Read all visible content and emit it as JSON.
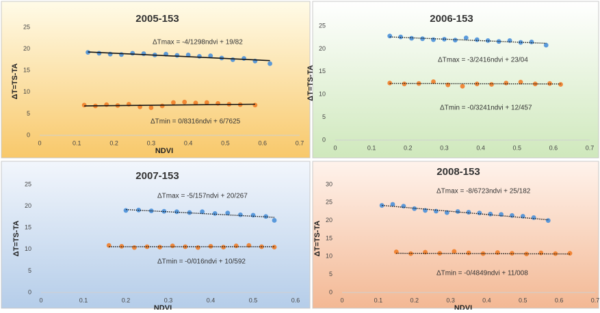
{
  "chart_data": [
    {
      "type": "scatter",
      "title": "2005-153",
      "x_label": "NDVI",
      "y_label": "ΔT=TS-TA",
      "xlim": [
        0,
        0.7
      ],
      "xticks": [
        0,
        0.1,
        0.2,
        0.3,
        0.4,
        0.5,
        0.6,
        0.7
      ],
      "ylim": [
        0,
        25
      ],
      "yticks": [
        0,
        5,
        10,
        15,
        20,
        25
      ],
      "trendline": "solid",
      "annotations": [
        "ΔTmax = -4/1298ndvi + 19/82",
        "ΔTmin = 0/8316ndvi + 6/7625"
      ],
      "series": [
        {
          "color": "#4a90d9",
          "x": [
            0.13,
            0.16,
            0.19,
            0.22,
            0.25,
            0.28,
            0.31,
            0.34,
            0.37,
            0.4,
            0.43,
            0.46,
            0.49,
            0.52,
            0.55,
            0.58,
            0.62
          ],
          "values": [
            19.2,
            19,
            18.8,
            18.7,
            19,
            18.9,
            18.6,
            18.8,
            18.5,
            18.6,
            18.3,
            18.4,
            17.9,
            17.5,
            17.8,
            17.2,
            16.6
          ],
          "trend": {
            "x": [
              0.13,
              0.62
            ],
            "y": [
              19.3,
              17.3
            ]
          }
        },
        {
          "color": "#f07d28",
          "x": [
            0.12,
            0.15,
            0.18,
            0.21,
            0.24,
            0.27,
            0.3,
            0.33,
            0.36,
            0.39,
            0.42,
            0.45,
            0.48,
            0.51,
            0.54,
            0.58
          ],
          "values": [
            7,
            6.8,
            7.1,
            6.9,
            7.2,
            6.6,
            6.4,
            6.8,
            7.6,
            7.7,
            7.5,
            7.6,
            7.4,
            7.2,
            7.1,
            7
          ],
          "trend": {
            "x": [
              0.12,
              0.58
            ],
            "y": [
              6.8,
              7.2
            ]
          }
        }
      ]
    },
    {
      "type": "scatter",
      "title": "2006-153",
      "y_label": "ΔT=TS-TA",
      "xlim": [
        0,
        0.7
      ],
      "xticks": [
        0,
        0.1,
        0.2,
        0.3,
        0.4,
        0.5,
        0.6,
        0.7
      ],
      "ylim": [
        0,
        25
      ],
      "yticks": [
        0,
        5,
        10,
        15,
        20,
        25
      ],
      "trendline": "dotted",
      "annotations": [
        "ΔTmax = -3/2416ndvi + 23/04",
        "ΔTmin = -0/3241ndvi + 12/457"
      ],
      "series": [
        {
          "color": "#4a90d9",
          "x": [
            0.15,
            0.18,
            0.21,
            0.24,
            0.27,
            0.3,
            0.33,
            0.36,
            0.39,
            0.42,
            0.45,
            0.48,
            0.51,
            0.54,
            0.58
          ],
          "values": [
            22.8,
            22.6,
            22.3,
            22.2,
            22,
            22.1,
            21.9,
            22.4,
            22,
            21.8,
            21.6,
            21.8,
            21.4,
            21.5,
            20.8
          ],
          "trend": {
            "x": [
              0.15,
              0.58
            ],
            "y": [
              22.6,
              21.2
            ]
          }
        },
        {
          "color": "#f07d28",
          "x": [
            0.15,
            0.19,
            0.23,
            0.27,
            0.31,
            0.35,
            0.39,
            0.43,
            0.47,
            0.51,
            0.55,
            0.59,
            0.62
          ],
          "values": [
            12.5,
            12.3,
            12.4,
            12.8,
            12.1,
            11.8,
            12.3,
            12.2,
            12.5,
            12.7,
            12.3,
            12.4,
            12.2
          ],
          "trend": {
            "x": [
              0.15,
              0.62
            ],
            "y": [
              12.4,
              12.3
            ]
          }
        }
      ]
    },
    {
      "type": "scatter",
      "title": "2007-153",
      "x_label": "NDVI",
      "y_label": "ΔT=TS-TA",
      "xlim": [
        0,
        0.6
      ],
      "xticks": [
        0,
        0.1,
        0.2,
        0.3,
        0.4,
        0.5,
        0.6
      ],
      "ylim": [
        0,
        25
      ],
      "yticks": [
        0,
        5,
        10,
        15,
        20,
        25
      ],
      "trendline": "dotted",
      "annotations": [
        "ΔTmax = -5/157ndvi + 20/267",
        "ΔTmin = -0/016ndvi + 10/592"
      ],
      "series": [
        {
          "color": "#4a90d9",
          "x": [
            0.2,
            0.23,
            0.26,
            0.29,
            0.32,
            0.35,
            0.38,
            0.41,
            0.44,
            0.47,
            0.5,
            0.53,
            0.55
          ],
          "values": [
            19,
            19.1,
            18.9,
            18.8,
            18.7,
            18.5,
            18.7,
            18.3,
            18.4,
            18,
            17.9,
            17.6,
            16.7
          ],
          "trend": {
            "x": [
              0.2,
              0.55
            ],
            "y": [
              19.2,
              17.4
            ]
          }
        },
        {
          "color": "#f07d28",
          "x": [
            0.16,
            0.19,
            0.22,
            0.25,
            0.28,
            0.31,
            0.34,
            0.37,
            0.4,
            0.43,
            0.46,
            0.49,
            0.52,
            0.55
          ],
          "values": [
            10.9,
            10.7,
            10.4,
            10.6,
            10.5,
            10.8,
            10.6,
            10.4,
            10.7,
            10.5,
            10.8,
            10.9,
            10.6,
            10.5
          ],
          "trend": {
            "x": [
              0.16,
              0.55
            ],
            "y": [
              10.6,
              10.6
            ]
          }
        }
      ]
    },
    {
      "type": "scatter",
      "title": "2008-153",
      "x_label": "NDVI",
      "y_label": "ΔT=TS-TA",
      "xlim": [
        0,
        0.7
      ],
      "xticks": [
        0,
        0.1,
        0.2,
        0.3,
        0.4,
        0.5,
        0.6,
        0.7
      ],
      "ylim": [
        0,
        30
      ],
      "yticks": [
        0,
        5,
        10,
        15,
        20,
        25,
        30
      ],
      "trendline": "dotted",
      "annotations": [
        "ΔTmax = -8/6723ndvi + 25/182",
        "ΔTmin = -0/4849ndvi + 11/008"
      ],
      "series": [
        {
          "color": "#4a90d9",
          "x": [
            0.11,
            0.14,
            0.17,
            0.2,
            0.23,
            0.26,
            0.29,
            0.32,
            0.35,
            0.38,
            0.41,
            0.44,
            0.47,
            0.5,
            0.53,
            0.57
          ],
          "values": [
            24.2,
            24.5,
            24,
            23.3,
            22.8,
            22.6,
            22.2,
            22.5,
            22.3,
            22.1,
            21.8,
            21.7,
            21.4,
            21.2,
            20.8,
            20
          ],
          "trend": {
            "x": [
              0.11,
              0.57
            ],
            "y": [
              24.2,
              20.2
            ]
          }
        },
        {
          "color": "#f07d28",
          "x": [
            0.15,
            0.19,
            0.23,
            0.27,
            0.31,
            0.35,
            0.39,
            0.43,
            0.47,
            0.51,
            0.55,
            0.59,
            0.63
          ],
          "values": [
            11.3,
            10.8,
            11.2,
            10.9,
            11.4,
            11,
            10.8,
            11.1,
            10.9,
            10.7,
            11,
            10.8,
            10.9
          ],
          "trend": {
            "x": [
              0.15,
              0.63
            ],
            "y": [
              10.9,
              10.7
            ]
          }
        }
      ]
    }
  ]
}
